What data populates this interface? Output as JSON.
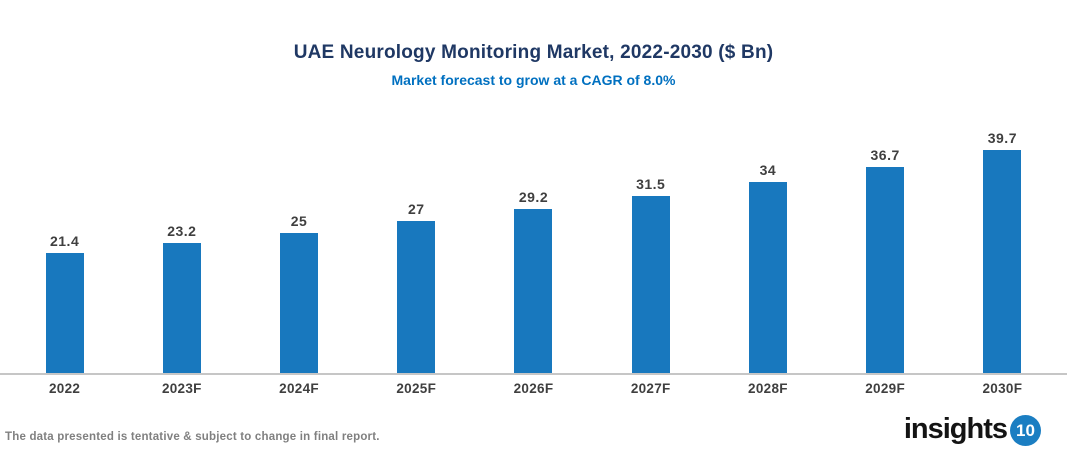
{
  "header": {
    "title": "UAE Neurology Monitoring Market, 2022-2030 ($ Bn)",
    "subtitle": "Market forecast to grow at a CAGR of 8.0%"
  },
  "chart_data": {
    "type": "bar",
    "title": "UAE Neurology Monitoring Market, 2022-2030 ($ Bn)",
    "subtitle": "Market forecast to grow at a CAGR of 8.0%",
    "categories": [
      "2022",
      "2023F",
      "2024F",
      "2025F",
      "2026F",
      "2027F",
      "2028F",
      "2029F",
      "2030F"
    ],
    "values": [
      21.4,
      23.2,
      25,
      27,
      29.2,
      31.5,
      34,
      36.7,
      39.7
    ],
    "value_labels": [
      "21.4",
      "23.2",
      "25",
      "27",
      "29.2",
      "31.5",
      "34",
      "36.7",
      "39.7"
    ],
    "unit": "$ Bn",
    "ylim": [
      0,
      40
    ],
    "grid": false,
    "legend": false,
    "bar_color": "#1878be"
  },
  "footer": {
    "disclaimer": "The data presented is tentative & subject to change in final report.",
    "logo_text": "insights",
    "logo_badge": "10"
  },
  "colors": {
    "title": "#1f3864",
    "subtitle": "#0070c0",
    "bar": "#1878be",
    "value_label": "#3f3f3f",
    "axis_label": "#3f3f3f",
    "axis_line": "#c6c6c6",
    "disclaimer": "#808080",
    "logo_badge_bg": "#1b7ec2"
  }
}
